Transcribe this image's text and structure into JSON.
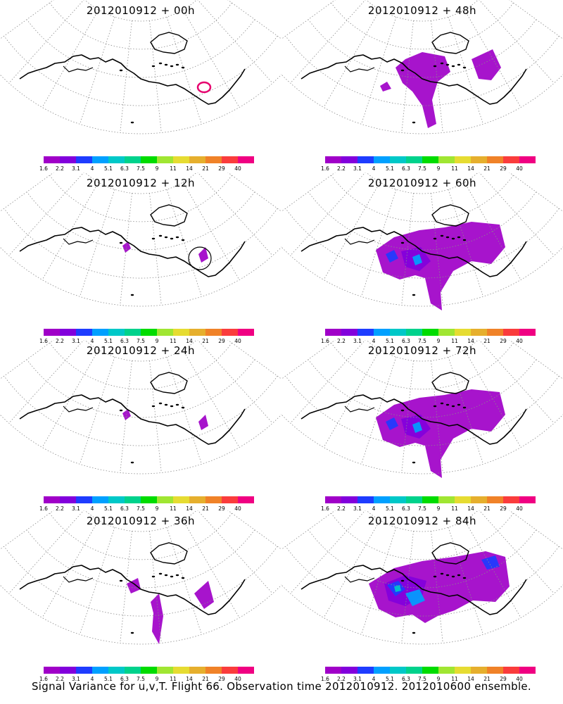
{
  "panels": [
    {
      "title": "2012010912 + 00h",
      "lead": "00h",
      "shading": "none",
      "markers": [
        "circle"
      ]
    },
    {
      "title": "2012010912 + 48h",
      "lead": "48h",
      "shading": "moderate",
      "markers": []
    },
    {
      "title": "2012010912 + 12h",
      "lead": "12h",
      "shading": "sparse",
      "markers": [
        "circle"
      ]
    },
    {
      "title": "2012010912 + 60h",
      "lead": "60h",
      "shading": "wide",
      "markers": []
    },
    {
      "title": "2012010912 + 24h",
      "lead": "24h",
      "shading": "sparse",
      "markers": []
    },
    {
      "title": "2012010912 + 72h",
      "lead": "72h",
      "shading": "wide",
      "markers": []
    },
    {
      "title": "2012010912 + 36h",
      "lead": "36h",
      "shading": "light",
      "markers": []
    },
    {
      "title": "2012010912 + 84h",
      "lead": "84h",
      "shading": "widest",
      "markers": []
    }
  ],
  "colorbar": {
    "labels": [
      "1.6",
      "2.2",
      "3.1",
      "4",
      "5.1",
      "6.3",
      "7.5",
      "9",
      "11",
      "14",
      "21",
      "29",
      "40"
    ],
    "colors": [
      "#a000c8",
      "#8200dc",
      "#1e3cff",
      "#00a0ff",
      "#00c8c8",
      "#00d28c",
      "#00dc00",
      "#a0e632",
      "#e6dc32",
      "#e6af2d",
      "#f08228",
      "#fa3c3c",
      "#f00082"
    ]
  },
  "caption": "Signal Variance for u,v,T. Flight 66. Observation time 2012010912. 2012010600 ensemble.",
  "colors": {
    "coast": "#000000",
    "grid": "#8c8c8c",
    "marker": "#e6006e"
  }
}
